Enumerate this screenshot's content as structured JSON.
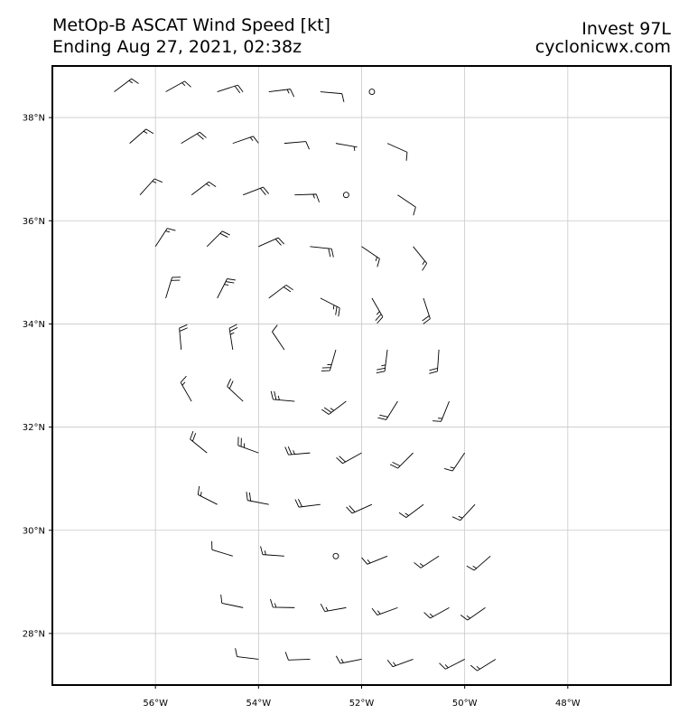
{
  "map": {
    "title": "MetOp-B ASCAT Wind Speed [kt]",
    "subtitle": "Ending Aug 27, 2021, 02:38z",
    "storm": "Invest 97L",
    "source": "cyclonicwx.com",
    "lonlim": [
      -58,
      -46
    ],
    "latlim": [
      27,
      39
    ],
    "lonticks": [
      {
        "value": -56,
        "label": "56°W"
      },
      {
        "value": -54,
        "label": "54°W"
      },
      {
        "value": -52,
        "label": "52°W"
      },
      {
        "value": -50,
        "label": "50°W"
      },
      {
        "value": -48,
        "label": "48°W"
      }
    ],
    "latticks": [
      {
        "value": 28,
        "label": "28°N"
      },
      {
        "value": 30,
        "label": "30°N"
      },
      {
        "value": 32,
        "label": "32°N"
      },
      {
        "value": 34,
        "label": "34°N"
      },
      {
        "value": 36,
        "label": "36°N"
      },
      {
        "value": 38,
        "label": "38°N"
      }
    ],
    "grid": true,
    "barb_color": "#000000",
    "wind_barbs": [
      {
        "lat": 38.5,
        "lon": [
          -56.8,
          -55.8,
          -54.8,
          -53.8,
          -52.8,
          -51.8
        ],
        "direction": [
          53,
          61,
          72,
          83,
          95,
          106
        ],
        "speed": [
          15,
          15,
          20,
          15,
          10,
          0
        ]
      },
      {
        "lat": 37.5,
        "lon": [
          -56.5,
          -55.5,
          -54.5,
          -53.5,
          -52.5,
          -51.5
        ],
        "direction": [
          49,
          59,
          71,
          85,
          100,
          114
        ],
        "speed": [
          15,
          20,
          15,
          10,
          5,
          10
        ]
      },
      {
        "lat": 36.5,
        "lon": [
          -56.3,
          -55.3,
          -54.3,
          -53.3,
          -52.3,
          -51.3
        ],
        "direction": [
          42,
          53,
          69,
          88,
          108,
          124
        ],
        "speed": [
          15,
          15,
          20,
          15,
          0,
          10
        ]
      },
      {
        "lat": 35.5,
        "lon": [
          -56.0,
          -55.0,
          -54.0,
          -53.0,
          -52.0,
          -51.0
        ],
        "direction": [
          33,
          45,
          66,
          96,
          124,
          141
        ],
        "speed": [
          15,
          20,
          20,
          20,
          15,
          15
        ]
      },
      {
        "lat": 34.5,
        "lon": [
          -55.8,
          -54.8,
          -53.8,
          -52.8,
          -51.8,
          -50.8
        ],
        "direction": [
          17,
          27,
          53,
          117,
          150,
          162
        ],
        "speed": [
          20,
          25,
          20,
          25,
          25,
          20
        ]
      },
      {
        "lat": 33.5,
        "lon": [
          -55.5,
          -54.5,
          -53.5,
          -52.5,
          -51.5,
          -50.5
        ],
        "direction": [
          355,
          351,
          326,
          196,
          187,
          184
        ],
        "speed": [
          20,
          25,
          10,
          25,
          25,
          20
        ]
      },
      {
        "lat": 32.5,
        "lon": [
          -55.3,
          -54.3,
          -53.3,
          -52.3,
          -51.3,
          -50.3
        ],
        "direction": [
          330,
          313,
          275,
          233,
          212,
          202
        ],
        "speed": [
          15,
          20,
          25,
          25,
          20,
          15
        ]
      },
      {
        "lat": 31.5,
        "lon": [
          -55.0,
          -54.0,
          -53.0,
          -52.0,
          -51.0,
          -50.0
        ],
        "direction": [
          309,
          290,
          265,
          241,
          225,
          214
        ],
        "speed": [
          20,
          25,
          25,
          20,
          20,
          15
        ]
      },
      {
        "lat": 30.5,
        "lon": [
          -54.8,
          -53.8,
          -52.8,
          -51.8,
          -50.8,
          -49.8
        ],
        "direction": [
          297,
          281,
          263,
          246,
          233,
          223
        ],
        "speed": [
          15,
          20,
          20,
          20,
          15,
          15
        ]
      },
      {
        "lat": 29.5,
        "lon": [
          -54.5,
          -53.5,
          -52.5,
          -51.5,
          -50.5,
          -49.5
        ],
        "direction": [
          287,
          274,
          261,
          248,
          237,
          229
        ],
        "speed": [
          10,
          15,
          0,
          15,
          15,
          15
        ]
      },
      {
        "lat": 28.5,
        "lon": [
          -54.3,
          -53.3,
          -52.3,
          -51.3,
          -50.3,
          -49.6
        ],
        "direction": [
          282,
          271,
          260,
          250,
          241,
          235
        ],
        "speed": [
          10,
          15,
          15,
          15,
          15,
          15
        ]
      },
      {
        "lat": 27.5,
        "lon": [
          -54.0,
          -53.0,
          -52.0,
          -51.0,
          -50.0,
          -49.4
        ],
        "direction": [
          277,
          268,
          259,
          250,
          243,
          238
        ],
        "speed": [
          10,
          10,
          15,
          15,
          15,
          15
        ]
      }
    ]
  }
}
